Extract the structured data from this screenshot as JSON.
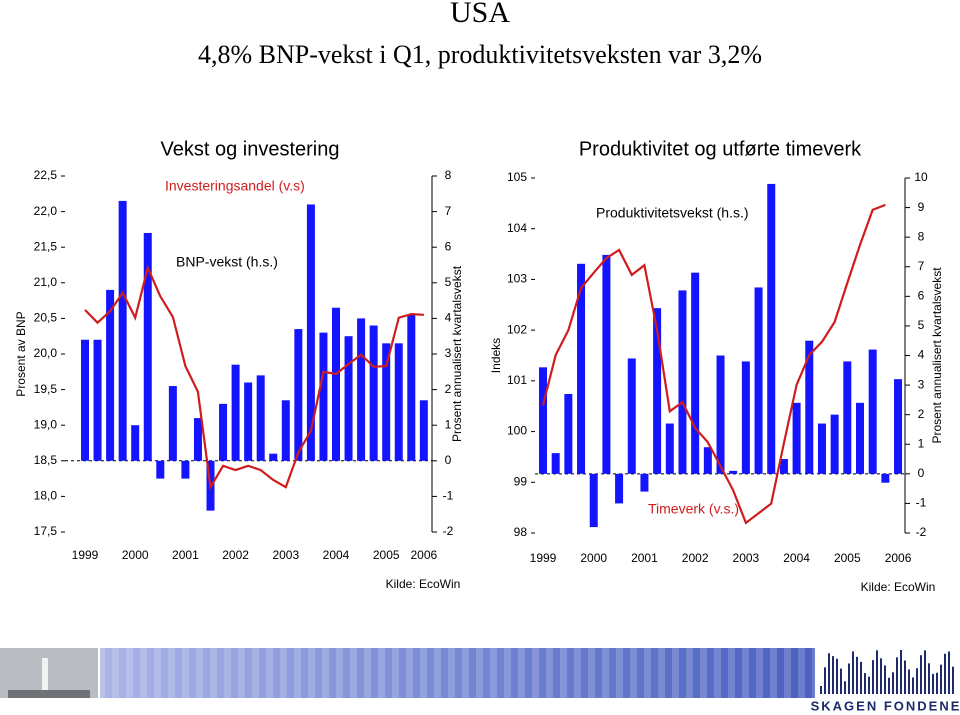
{
  "slide": {
    "title": "USA",
    "subtitle": "4,8% BNP-vekst i Q1, produktivitetsveksten var 3,2%",
    "logo": "SKAGEN FONDENE"
  },
  "chart_data": [
    {
      "type": "combo",
      "title": "Vekst og investering",
      "source": "Kilde: EcoWin",
      "y_label": "Prosent av BNP",
      "y2_label": "Prosent annualisert kvartalsvekst",
      "categories": [
        "1999",
        null,
        null,
        null,
        "2000",
        null,
        null,
        null,
        "2001",
        null,
        null,
        null,
        "2002",
        null,
        null,
        null,
        "2003",
        null,
        null,
        null,
        "2004",
        null,
        null,
        null,
        "2005",
        null,
        null,
        "2006"
      ],
      "ylim": [
        17.5,
        22.5
      ],
      "yticks": [
        {
          "value": 17.5,
          "label": "17,5"
        },
        {
          "value": 18,
          "label": "18,0"
        },
        {
          "value": 18.5,
          "label": "18,5"
        },
        {
          "value": 19,
          "label": "19,0"
        },
        {
          "value": 19.5,
          "label": "19,5"
        },
        {
          "value": 20,
          "label": "20,0"
        },
        {
          "value": 20.5,
          "label": "20,5"
        },
        {
          "value": 21,
          "label": "21,0"
        },
        {
          "value": 21.5,
          "label": "21,5"
        },
        {
          "value": 22,
          "label": "22,0"
        },
        {
          "value": 22.5,
          "label": "22,5"
        }
      ],
      "y2lim": [
        -2,
        8
      ],
      "y2ticks": [
        -2,
        -1,
        0,
        1,
        2,
        3,
        4,
        5,
        6,
        7,
        8
      ],
      "series": [
        {
          "name": "BNP-vekst (h.s.)",
          "type": "bar",
          "axis": "y2",
          "color": "#1414ff",
          "values": [
            3.4,
            3.4,
            4.8,
            7.3,
            1.0,
            6.4,
            -0.5,
            2.1,
            -0.5,
            1.2,
            -1.4,
            1.6,
            2.7,
            2.2,
            2.4,
            0.2,
            1.7,
            3.7,
            7.2,
            3.6,
            4.3,
            3.5,
            4.0,
            3.8,
            3.3,
            3.3,
            4.1,
            1.7
          ]
        },
        {
          "name": "Investeringsandel (v.s)",
          "type": "line",
          "color": "#d01c1c",
          "values": [
            20.62,
            20.44,
            20.6,
            20.86,
            20.51,
            21.21,
            20.81,
            20.52,
            19.83,
            19.47,
            18.13,
            18.43,
            18.37,
            18.43,
            18.37,
            18.23,
            18.13,
            18.62,
            18.92,
            19.75,
            19.72,
            19.86,
            19.99,
            19.82,
            19.83,
            20.51,
            20.56,
            20.55
          ]
        }
      ]
    },
    {
      "type": "combo",
      "title": "Produktivitet og utførte timeverk",
      "source": "Kilde: EcoWin",
      "y_label": "Indeks",
      "y2_label": "Prosent annualisert kvartalsvekst",
      "categories": [
        "1999",
        null,
        null,
        null,
        "2000",
        null,
        null,
        null,
        "2001",
        null,
        null,
        null,
        "2002",
        null,
        null,
        null,
        "2003",
        null,
        null,
        null,
        "2004",
        null,
        null,
        null,
        "2005",
        null,
        null,
        null,
        "2006"
      ],
      "ylim": [
        98,
        105
      ],
      "yticks": [
        98,
        99,
        100,
        101,
        102,
        103,
        104,
        105
      ],
      "y2lim": [
        -2,
        10
      ],
      "y2ticks": [
        -2,
        -1,
        0,
        1,
        2,
        3,
        4,
        5,
        6,
        7,
        8,
        9,
        10
      ],
      "series": [
        {
          "name": "Produktivitetsvekst (h.s.)",
          "type": "bar",
          "axis": "y2",
          "color": "#1414ff",
          "values": [
            3.6,
            0.7,
            2.7,
            7.1,
            -1.8,
            7.4,
            -1.0,
            3.9,
            -0.6,
            5.6,
            1.7,
            6.2,
            6.8,
            0.9,
            4.0,
            0.1,
            3.8,
            6.3,
            9.8,
            0.5,
            2.4,
            4.5,
            1.7,
            2.0,
            3.8,
            2.4,
            4.2,
            -0.3,
            3.2
          ]
        },
        {
          "name": "Timeverk (v.s.)",
          "type": "line",
          "color": "#d01c1c",
          "values": [
            100.52,
            101.51,
            102.0,
            102.83,
            103.13,
            103.42,
            103.58,
            103.09,
            103.28,
            102.0,
            100.4,
            100.58,
            100.07,
            99.79,
            99.32,
            98.84,
            98.2,
            98.39,
            98.58,
            99.77,
            100.92,
            101.51,
            101.77,
            102.16,
            102.93,
            103.68,
            104.37,
            104.47,
            null
          ]
        }
      ]
    }
  ]
}
